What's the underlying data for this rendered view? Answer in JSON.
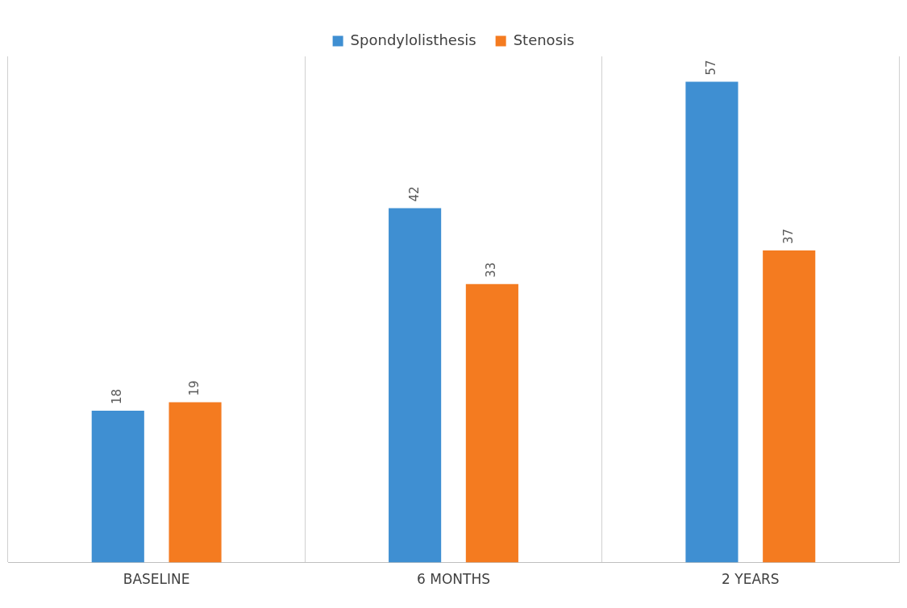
{
  "chart_data": {
    "type": "bar",
    "categories": [
      "BASELINE",
      "6 MONTHS",
      "2 YEARS"
    ],
    "series": [
      {
        "name": "Spondylolisthesis",
        "color": "#3f8fd2",
        "values": [
          18,
          42,
          57
        ]
      },
      {
        "name": "Stenosis",
        "color": "#f47b20",
        "values": [
          19,
          33,
          37
        ]
      }
    ],
    "ylim": [
      0,
      60
    ],
    "data_labels": true,
    "grid": "x",
    "legend": "top"
  }
}
